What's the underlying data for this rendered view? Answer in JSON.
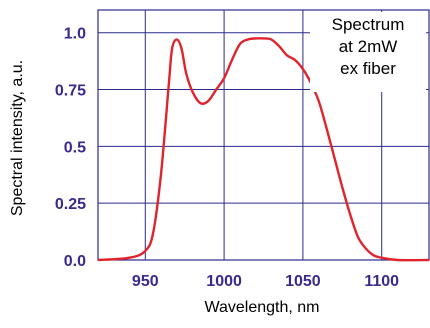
{
  "chart_data": {
    "type": "line",
    "xlabel": "Wavelength, nm",
    "ylabel": "Spectral intensity, a.u.",
    "annotation": [
      "Spectrum",
      "at 2mW",
      "ex fiber"
    ],
    "xlim": [
      920,
      1130
    ],
    "ylim": [
      0,
      1.1
    ],
    "x_ticks": [
      950,
      1000,
      1050,
      1100
    ],
    "y_ticks": [
      0.0,
      0.25,
      0.5,
      0.75,
      1.0
    ],
    "x_tick_labels": [
      "950",
      "1000",
      "1050",
      "1100"
    ],
    "y_tick_labels": [
      "0.0",
      "0.25",
      "0.5",
      "0.75",
      "1.0"
    ],
    "grid": true,
    "colors": {
      "line": "#e0242d",
      "axis_text": "#3b2a8c",
      "grid": "#2b2a8c"
    },
    "series": [
      {
        "x": [
          920,
          940,
          950,
          955,
          960,
          965,
          967,
          970,
          973,
          976,
          980,
          985,
          990,
          995,
          1000,
          1005,
          1010,
          1015,
          1020,
          1025,
          1030,
          1035,
          1040,
          1045,
          1050,
          1055,
          1060,
          1065,
          1070,
          1075,
          1080,
          1085,
          1090,
          1095,
          1100,
          1110,
          1130
        ],
        "y": [
          0.0,
          0.01,
          0.04,
          0.12,
          0.38,
          0.78,
          0.93,
          0.97,
          0.93,
          0.82,
          0.74,
          0.69,
          0.7,
          0.75,
          0.8,
          0.88,
          0.95,
          0.97,
          0.975,
          0.975,
          0.97,
          0.94,
          0.9,
          0.88,
          0.84,
          0.78,
          0.7,
          0.58,
          0.45,
          0.32,
          0.2,
          0.1,
          0.05,
          0.02,
          0.01,
          0.0,
          0.0
        ]
      }
    ]
  }
}
